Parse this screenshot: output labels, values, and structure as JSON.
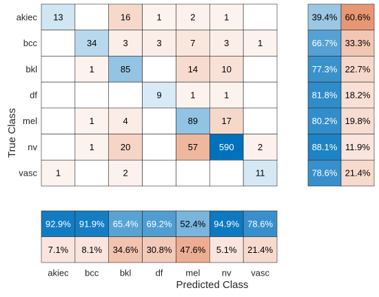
{
  "chart_data": {
    "type": "heatmap",
    "title": "",
    "xlabel": "Predicted Class",
    "ylabel": "True Class",
    "classes": [
      "akiec",
      "bcc",
      "bkl",
      "df",
      "mel",
      "nv",
      "vasc"
    ],
    "matrix": [
      [
        13,
        null,
        16,
        1,
        2,
        1,
        null
      ],
      [
        null,
        34,
        3,
        3,
        7,
        3,
        1
      ],
      [
        null,
        1,
        85,
        null,
        14,
        10,
        null
      ],
      [
        null,
        null,
        null,
        9,
        1,
        1,
        null
      ],
      [
        null,
        1,
        4,
        null,
        89,
        17,
        null
      ],
      [
        null,
        1,
        20,
        null,
        57,
        590,
        2
      ],
      [
        1,
        null,
        2,
        null,
        null,
        null,
        11
      ]
    ],
    "row_summary": {
      "correct": [
        "39.4%",
        "66.7%",
        "77.3%",
        "81.8%",
        "80.2%",
        "88.1%",
        "78.6%"
      ],
      "incorrect": [
        "60.6%",
        "33.3%",
        "22.7%",
        "18.2%",
        "19.8%",
        "11.9%",
        "21.4%"
      ]
    },
    "column_summary": {
      "correct": [
        "92.9%",
        "91.9%",
        "65.4%",
        "69.2%",
        "52.4%",
        "94.9%",
        "78.6%"
      ],
      "incorrect": [
        "7.1%",
        "8.1%",
        "34.6%",
        "30.8%",
        "47.6%",
        "5.1%",
        "21.4%"
      ]
    },
    "colors": {
      "diagonal_max": "#0072bd",
      "offdiag_max": "#d95319",
      "light_text": "#ffffff",
      "dark_text": "#000000",
      "grid_line": "#262626"
    }
  }
}
